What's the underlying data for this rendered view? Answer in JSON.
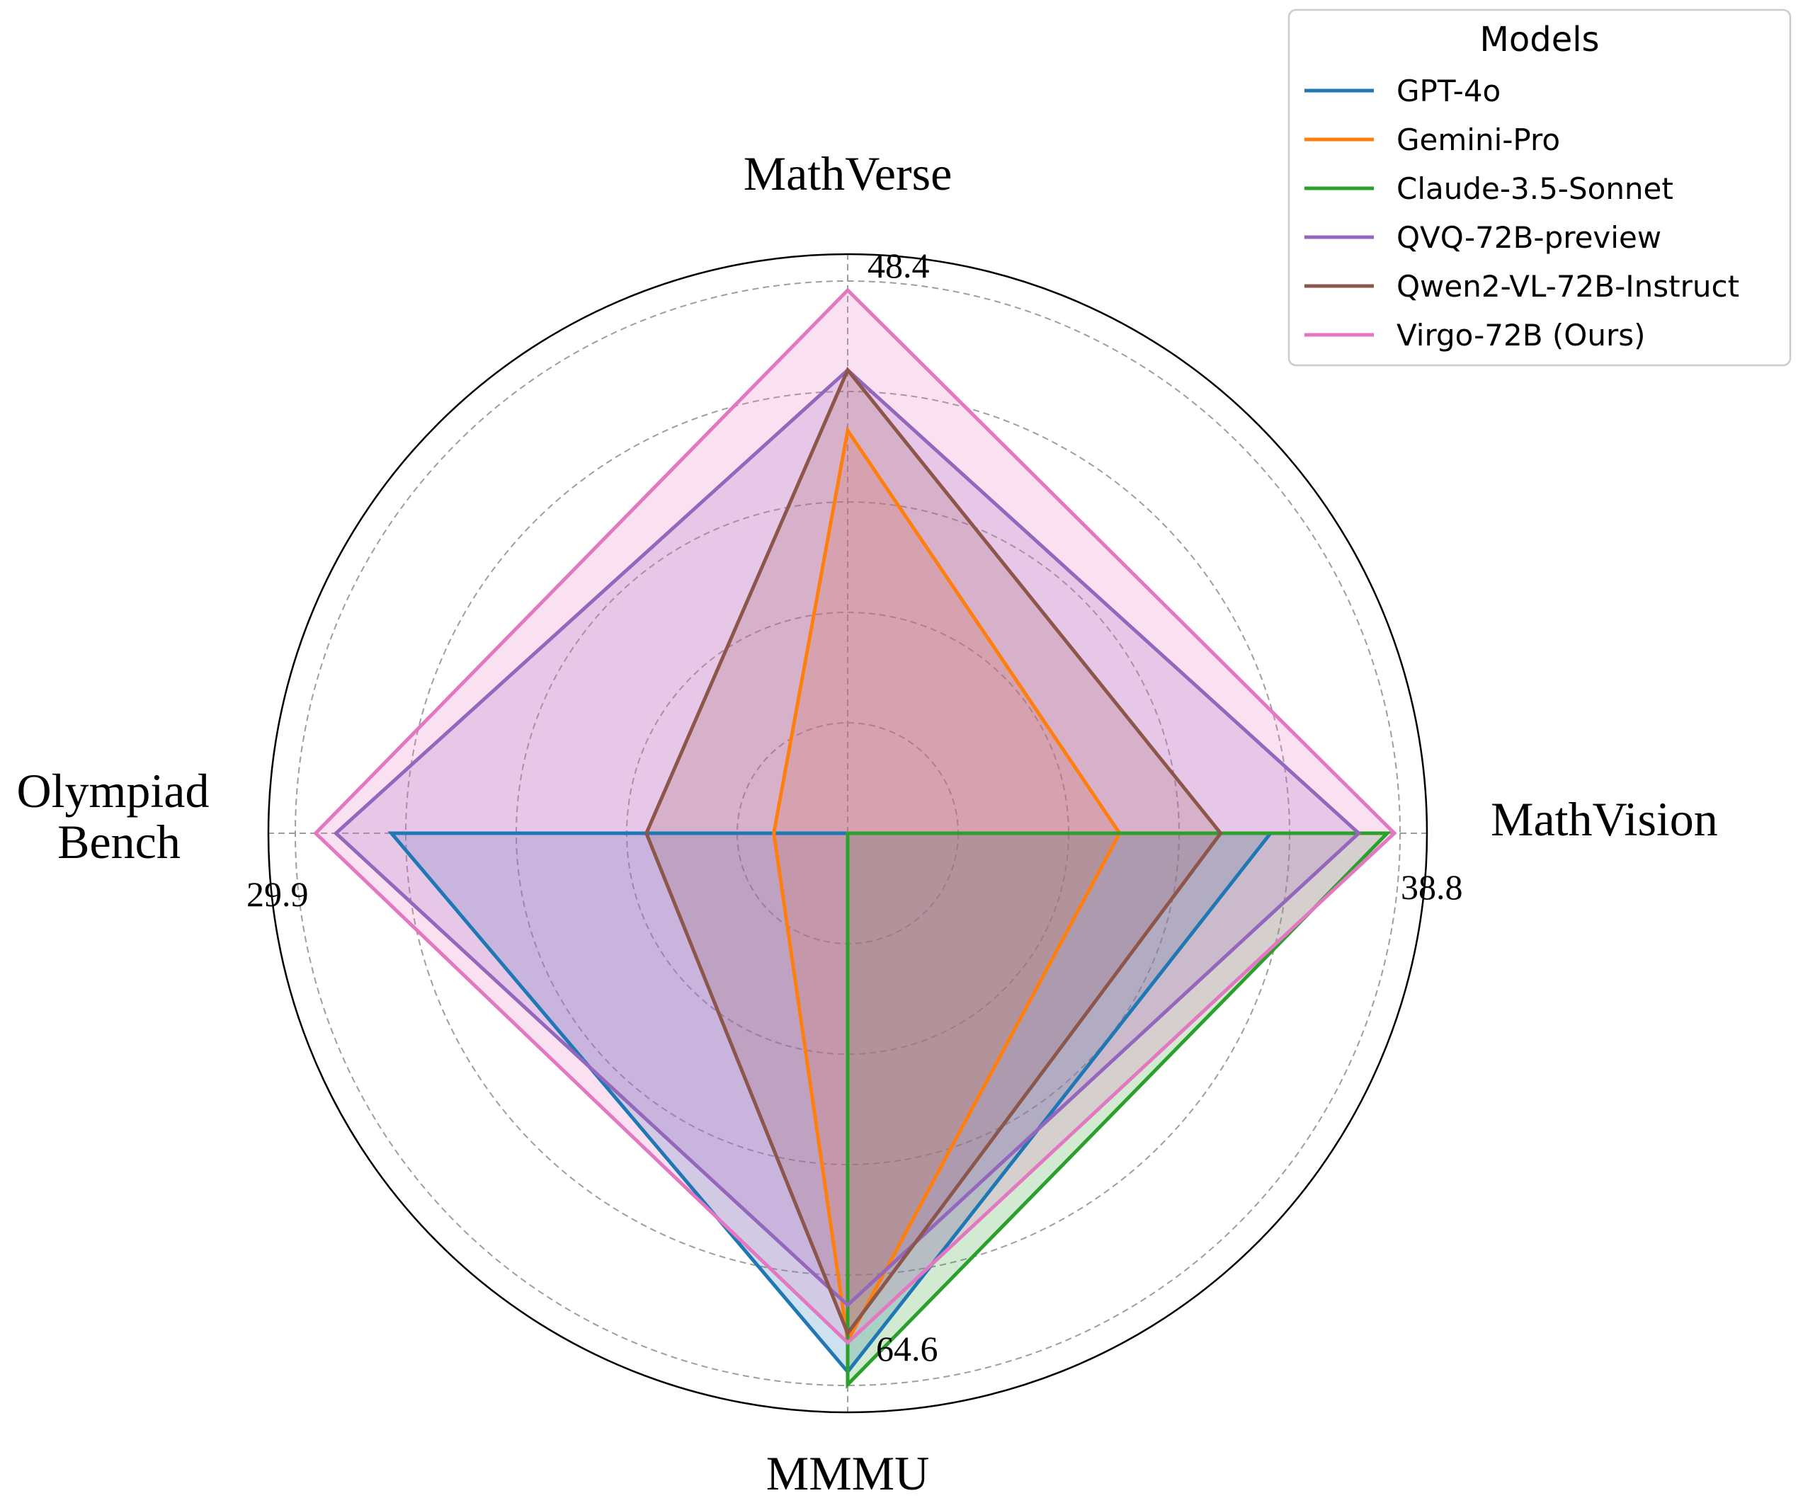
{
  "chart_data": {
    "type": "radar",
    "axes": [
      {
        "name": "MathVerse",
        "max": 48.4
      },
      {
        "name": "MathVision",
        "max": 38.8
      },
      {
        "name": "MMMU",
        "max": 64.6
      },
      {
        "name": "Olympiad\nBench",
        "max": 29.9
      }
    ],
    "max_labels": [
      "48.4",
      "38.8",
      "64.6",
      "29.9"
    ],
    "rings": [
      0.2,
      0.4,
      0.6,
      0.8,
      1.0
    ],
    "grid": true,
    "legend": {
      "title": "Models",
      "position": "top-right"
    },
    "series": [
      {
        "name": "GPT-4o",
        "color": "#1f77b4",
        "values": [
          0,
          29.7,
          63.0,
          24.7
        ]
      },
      {
        "name": "Gemini-Pro",
        "color": "#ff7f0e",
        "values": [
          35.3,
          19.1,
          59.4,
          4.0
        ]
      },
      {
        "name": "Claude-3.5-Sonnet",
        "color": "#2ca02c",
        "values": [
          0,
          37.9,
          64.5,
          0
        ]
      },
      {
        "name": "QVQ-72B-preview",
        "color": "#9467bd",
        "values": [
          40.6,
          35.9,
          55.2,
          27.7
        ]
      },
      {
        "name": "Qwen2-VL-72B-Instruct",
        "color": "#8c564b",
        "values": [
          40.6,
          26.2,
          58.5,
          10.9
        ]
      },
      {
        "name": "Virgo-72B (Ours)",
        "color": "#e377c2",
        "values": [
          47.6,
          38.4,
          59.6,
          28.8
        ]
      }
    ]
  }
}
